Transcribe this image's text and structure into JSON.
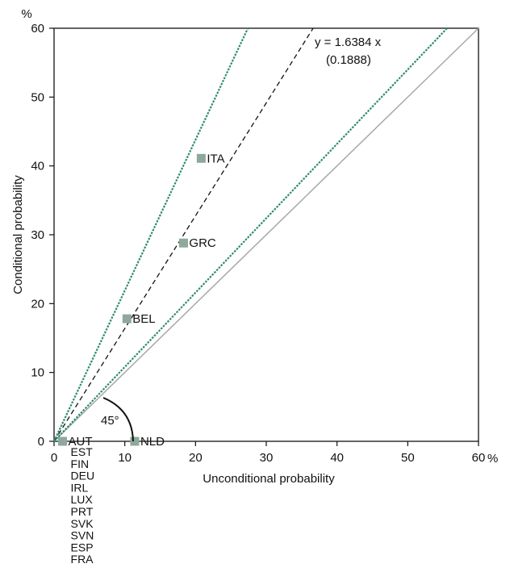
{
  "chart_data": {
    "type": "scatter",
    "xlabel": "Unconditional probability",
    "ylabel": "Conditional probability",
    "x_unit": "%",
    "y_unit": "%",
    "xlim": [
      0,
      60
    ],
    "ylim": [
      0,
      60
    ],
    "xticks": [
      0,
      10,
      20,
      30,
      40,
      50,
      60
    ],
    "yticks": [
      0,
      10,
      20,
      30,
      40,
      50,
      60
    ],
    "grid": false,
    "points": [
      {
        "label": "AUT",
        "x": 1.2,
        "y": 0.0
      },
      {
        "label": "NLD",
        "x": 11.4,
        "y": 0.0
      },
      {
        "label": "BEL",
        "x": 10.3,
        "y": 17.8
      },
      {
        "label": "GRC",
        "x": 18.3,
        "y": 28.8
      },
      {
        "label": "ITA",
        "x": 20.8,
        "y": 41.1
      }
    ],
    "stacked_labels": [
      "EST",
      "FIN",
      "DEU",
      "IRL",
      "LUX",
      "PRT",
      "SVK",
      "SVN",
      "ESP",
      "FRA"
    ],
    "lines": [
      {
        "kind": "45-degree",
        "slope": 1.0,
        "color": "#a8a8a8",
        "style": "solid"
      },
      {
        "kind": "regression",
        "slope": 1.6384,
        "color": "#111111",
        "style": "dashed"
      },
      {
        "kind": "upper-band",
        "slope": 2.19,
        "color": "#2e8b6e",
        "style": "dotted"
      },
      {
        "kind": "lower-band",
        "slope": 1.08,
        "color": "#2e8b6e",
        "style": "dotted"
      }
    ],
    "regression_label": "y = 1.6384 x",
    "regression_se": "(0.1888)",
    "angle_label": "45°",
    "marker_color": "#8fa89c"
  }
}
